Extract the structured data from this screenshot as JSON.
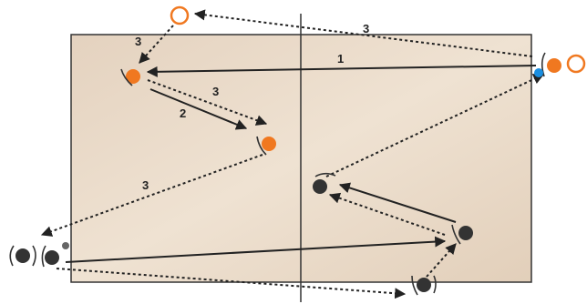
{
  "labels": [
    "1",
    "2",
    "3",
    "3",
    "3",
    "3"
  ]
}
